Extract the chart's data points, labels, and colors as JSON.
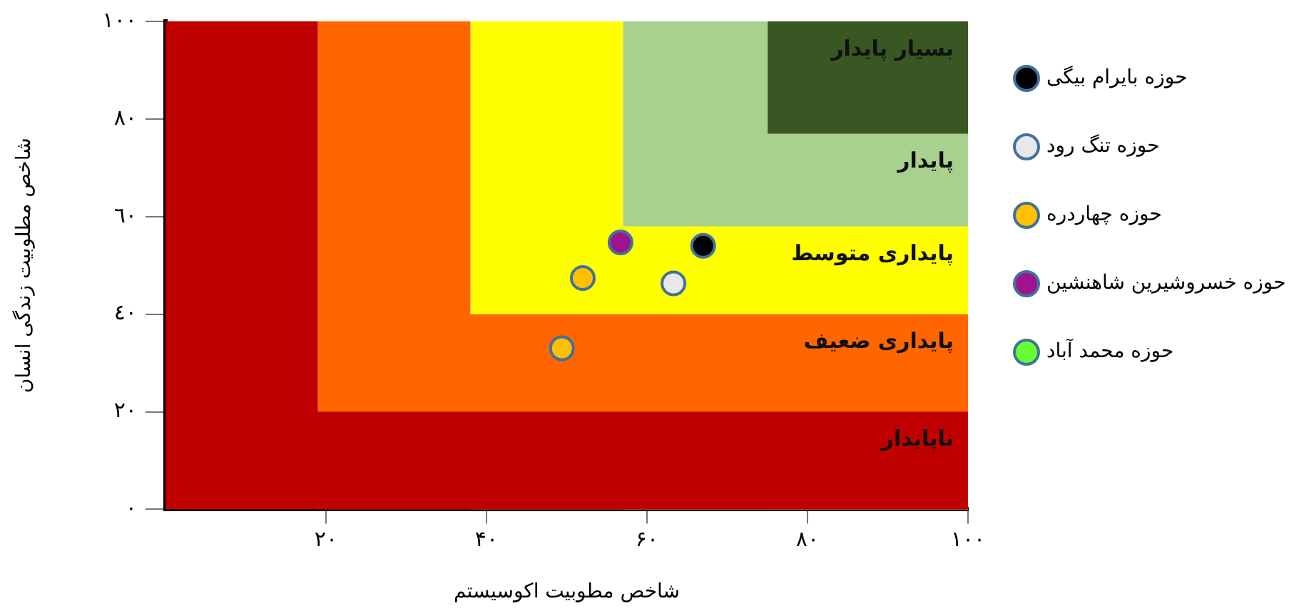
{
  "chart_data": {
    "type": "scatter",
    "xlabel": "شاخص مطوبیت اکوسیستم",
    "ylabel": "شاخص مطلوبیت زندگی انسان",
    "xlim": [
      0,
      100
    ],
    "ylim": [
      0,
      100
    ],
    "xticks": [
      {
        "value": 20,
        "label": "۲۰"
      },
      {
        "value": 40,
        "label": "۴۰"
      },
      {
        "value": 60,
        "label": "۶۰"
      },
      {
        "value": 80,
        "label": "۸۰"
      },
      {
        "value": 100,
        "label": "۱۰۰"
      }
    ],
    "yticks": [
      {
        "value": 0,
        "label": "٠"
      },
      {
        "value": 20,
        "label": "٢٠"
      },
      {
        "value": 40,
        "label": "٤٠"
      },
      {
        "value": 60,
        "label": "٦٠"
      },
      {
        "value": 80,
        "label": "٨٠"
      },
      {
        "value": 100,
        "label": "١٠٠"
      }
    ],
    "grid": false,
    "legend": "right",
    "marker": "circle",
    "series": [
      {
        "type": "area",
        "name": "ناپایدار",
        "marker": "none",
        "color": "#c00000",
        "x": [
          0,
          19,
          19,
          100
        ],
        "values": [
          100,
          100,
          20,
          20
        ]
      },
      {
        "type": "area",
        "name": "پایداری ضعیف",
        "marker": "none",
        "color": "#ff6600",
        "x": [
          19,
          38,
          38,
          100
        ],
        "values": [
          100,
          100,
          40,
          40
        ]
      },
      {
        "type": "area",
        "name": "پایداری متوسط",
        "marker": "none",
        "color": "#ffff00",
        "x": [
          38,
          57,
          57,
          100
        ],
        "values": [
          100,
          100,
          58,
          58
        ]
      },
      {
        "type": "area",
        "name": "پایدار",
        "marker": "none",
        "color": "#a9d18e",
        "x": [
          57,
          75,
          75,
          100
        ],
        "values": [
          100,
          100,
          77,
          77
        ]
      },
      {
        "type": "area",
        "name": "بسیار پایدار",
        "marker": "none",
        "color": "#385723",
        "x": [
          75,
          100
        ],
        "values": [
          100,
          100
        ]
      },
      {
        "name": "حوزه بایرام بیگی",
        "color": "#000000",
        "x": [
          67
        ],
        "values": [
          54
        ]
      },
      {
        "name": "حوزه تنگ رود",
        "color": "#e8e8e8",
        "x": [
          63.3
        ],
        "values": [
          46.3
        ]
      },
      {
        "name": "حوزه چهاردره",
        "color": "#ffc000",
        "x": [
          52,
          49.4
        ],
        "values": [
          47.4,
          33
        ]
      },
      {
        "name": "حوزه خسروشیرین شاهنشین",
        "color": "#a0138e",
        "x": [
          56.7
        ],
        "values": [
          54.7
        ]
      },
      {
        "name": "حوزه محمد آباد",
        "color": "#66ff33"
      }
    ]
  }
}
